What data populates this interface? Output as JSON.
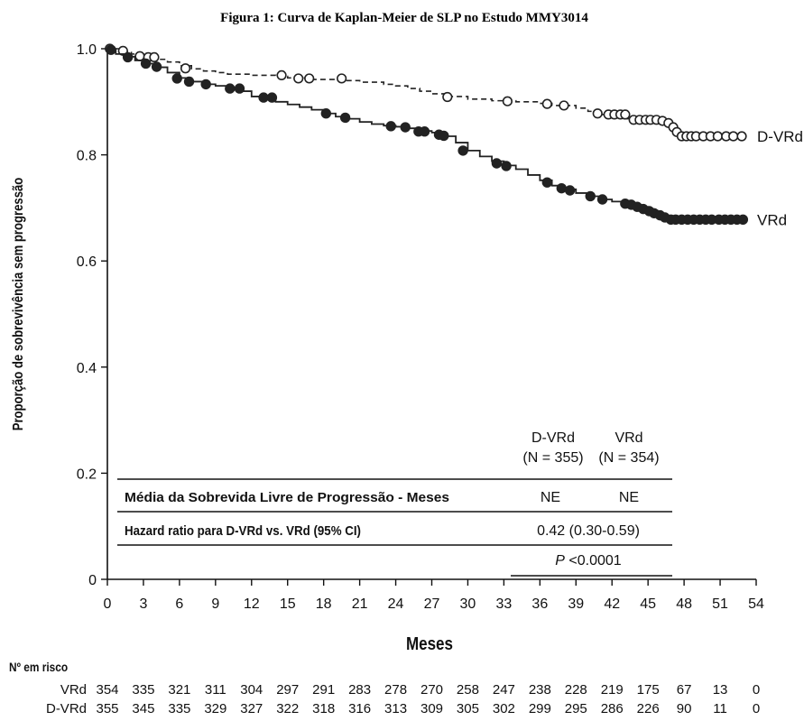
{
  "chart_data": {
    "type": "line",
    "title": "Figura 1: Curva de Kaplan-Meier de SLP no Estudo MMY3014",
    "xlabel": "Meses",
    "ylabel": "Proporção de sobrevivência sem progressão",
    "xlim": [
      0,
      54
    ],
    "ylim": [
      0,
      1.0
    ],
    "x_ticks": [
      "0",
      "3",
      "6",
      "9",
      "12",
      "15",
      "18",
      "21",
      "24",
      "27",
      "30",
      "33",
      "36",
      "39",
      "42",
      "45",
      "48",
      "51",
      "54"
    ],
    "y_ticks": [
      {
        "value": 0,
        "label": "0"
      },
      {
        "value": 0.2,
        "label": "0.2"
      },
      {
        "value": 0.4,
        "label": "0.4"
      },
      {
        "value": 0.6,
        "label": "0.6"
      },
      {
        "value": 0.8,
        "label": "0.8"
      },
      {
        "value": 1.0,
        "label": "1.0"
      }
    ],
    "grid": false,
    "series": [
      {
        "name": "D-VRd",
        "color": "#222222",
        "marker": "open-circle",
        "line": "dashed",
        "steps": [
          [
            0,
            1.0
          ],
          [
            1,
            0.995
          ],
          [
            2,
            0.99
          ],
          [
            3,
            0.985
          ],
          [
            4,
            0.98
          ],
          [
            5,
            0.975
          ],
          [
            6,
            0.968
          ],
          [
            7,
            0.962
          ],
          [
            8,
            0.958
          ],
          [
            9,
            0.955
          ],
          [
            10,
            0.952
          ],
          [
            12,
            0.95
          ],
          [
            14,
            0.948
          ],
          [
            15,
            0.945
          ],
          [
            17,
            0.942
          ],
          [
            19,
            0.94
          ],
          [
            21,
            0.937
          ],
          [
            23,
            0.933
          ],
          [
            24,
            0.93
          ],
          [
            25,
            0.925
          ],
          [
            26,
            0.92
          ],
          [
            27,
            0.915
          ],
          [
            28,
            0.91
          ],
          [
            30,
            0.905
          ],
          [
            32,
            0.902
          ],
          [
            34,
            0.9
          ],
          [
            36,
            0.897
          ],
          [
            37,
            0.893
          ],
          [
            39,
            0.888
          ],
          [
            40,
            0.882
          ],
          [
            41,
            0.876
          ],
          [
            42,
            0.872
          ],
          [
            43,
            0.868
          ],
          [
            44,
            0.866
          ],
          [
            45,
            0.864
          ],
          [
            46,
            0.86
          ],
          [
            46.5,
            0.855
          ],
          [
            47,
            0.848
          ],
          [
            47.5,
            0.84
          ],
          [
            48,
            0.835
          ],
          [
            53,
            0.835
          ]
        ],
        "censored": [
          [
            0.2,
            1.0
          ],
          [
            1.3,
            0.996
          ],
          [
            2.7,
            0.986
          ],
          [
            3.4,
            0.984
          ],
          [
            3.9,
            0.984
          ],
          [
            6.5,
            0.963
          ],
          [
            14.5,
            0.95
          ],
          [
            15.9,
            0.944
          ],
          [
            16.8,
            0.944
          ],
          [
            19.5,
            0.944
          ],
          [
            28.3,
            0.909
          ],
          [
            33.3,
            0.901
          ],
          [
            36.6,
            0.896
          ],
          [
            38,
            0.893
          ],
          [
            40.8,
            0.878
          ],
          [
            41.7,
            0.876
          ],
          [
            42.2,
            0.876
          ],
          [
            42.7,
            0.876
          ],
          [
            43.1,
            0.876
          ],
          [
            43.8,
            0.866
          ],
          [
            44.3,
            0.866
          ],
          [
            44.8,
            0.866
          ],
          [
            45.2,
            0.866
          ],
          [
            45.7,
            0.866
          ],
          [
            46.2,
            0.864
          ],
          [
            46.7,
            0.86
          ],
          [
            47.1,
            0.852
          ],
          [
            47.4,
            0.843
          ],
          [
            47.8,
            0.835
          ],
          [
            48.2,
            0.835
          ],
          [
            48.6,
            0.835
          ],
          [
            49,
            0.835
          ],
          [
            49.6,
            0.835
          ],
          [
            50.2,
            0.835
          ],
          [
            50.8,
            0.835
          ],
          [
            51.5,
            0.835
          ],
          [
            52.1,
            0.835
          ],
          [
            52.8,
            0.835
          ]
        ]
      },
      {
        "name": "VRd",
        "color": "#222222",
        "marker": "filled-circle",
        "line": "solid",
        "steps": [
          [
            0,
            1.0
          ],
          [
            0.7,
            0.99
          ],
          [
            1.5,
            0.985
          ],
          [
            2.3,
            0.978
          ],
          [
            3,
            0.972
          ],
          [
            4,
            0.965
          ],
          [
            5,
            0.955
          ],
          [
            6,
            0.945
          ],
          [
            7,
            0.938
          ],
          [
            8,
            0.933
          ],
          [
            9,
            0.93
          ],
          [
            10,
            0.925
          ],
          [
            11,
            0.92
          ],
          [
            12,
            0.91
          ],
          [
            13,
            0.905
          ],
          [
            14,
            0.9
          ],
          [
            15,
            0.895
          ],
          [
            16,
            0.89
          ],
          [
            17,
            0.885
          ],
          [
            18,
            0.878
          ],
          [
            19,
            0.872
          ],
          [
            20,
            0.868
          ],
          [
            21,
            0.862
          ],
          [
            22,
            0.858
          ],
          [
            23,
            0.855
          ],
          [
            24,
            0.853
          ],
          [
            25,
            0.85
          ],
          [
            26,
            0.845
          ],
          [
            27,
            0.842
          ],
          [
            28,
            0.835
          ],
          [
            29,
            0.823
          ],
          [
            30,
            0.808
          ],
          [
            31,
            0.797
          ],
          [
            32,
            0.788
          ],
          [
            33,
            0.78
          ],
          [
            34,
            0.773
          ],
          [
            35,
            0.762
          ],
          [
            36,
            0.752
          ],
          [
            37,
            0.742
          ],
          [
            38,
            0.735
          ],
          [
            39,
            0.728
          ],
          [
            40,
            0.722
          ],
          [
            41,
            0.716
          ],
          [
            42,
            0.712
          ],
          [
            43,
            0.708
          ],
          [
            44,
            0.702
          ],
          [
            45,
            0.695
          ],
          [
            45.8,
            0.688
          ],
          [
            46.5,
            0.682
          ],
          [
            47,
            0.678
          ],
          [
            53,
            0.678
          ]
        ],
        "censored": [
          [
            0.3,
            0.998
          ],
          [
            1.7,
            0.984
          ],
          [
            3.2,
            0.972
          ],
          [
            4.1,
            0.966
          ],
          [
            5.8,
            0.944
          ],
          [
            6.8,
            0.938
          ],
          [
            8.2,
            0.933
          ],
          [
            10.2,
            0.925
          ],
          [
            11,
            0.925
          ],
          [
            13,
            0.908
          ],
          [
            13.7,
            0.908
          ],
          [
            18.2,
            0.878
          ],
          [
            19.8,
            0.87
          ],
          [
            23.6,
            0.854
          ],
          [
            24.8,
            0.852
          ],
          [
            25.9,
            0.844
          ],
          [
            26.4,
            0.844
          ],
          [
            27.6,
            0.838
          ],
          [
            28,
            0.836
          ],
          [
            29.6,
            0.808
          ],
          [
            32.4,
            0.784
          ],
          [
            33.2,
            0.779
          ],
          [
            36.6,
            0.748
          ],
          [
            37.8,
            0.737
          ],
          [
            38.5,
            0.733
          ],
          [
            40.2,
            0.722
          ],
          [
            41.2,
            0.716
          ],
          [
            43.1,
            0.708
          ],
          [
            43.6,
            0.706
          ],
          [
            44.1,
            0.702
          ],
          [
            44.6,
            0.698
          ],
          [
            45.1,
            0.694
          ],
          [
            45.5,
            0.69
          ],
          [
            46,
            0.686
          ],
          [
            46.4,
            0.682
          ],
          [
            46.9,
            0.678
          ],
          [
            47.3,
            0.678
          ],
          [
            47.8,
            0.678
          ],
          [
            48.3,
            0.678
          ],
          [
            48.8,
            0.678
          ],
          [
            49.3,
            0.678
          ],
          [
            49.8,
            0.678
          ],
          [
            50.3,
            0.678
          ],
          [
            50.9,
            0.678
          ],
          [
            51.4,
            0.678
          ],
          [
            51.9,
            0.678
          ],
          [
            52.4,
            0.678
          ],
          [
            52.9,
            0.678
          ]
        ]
      }
    ],
    "series_labels": [
      {
        "text": "D-VRd",
        "value": 0.835
      },
      {
        "text": "VRd",
        "value": 0.678
      }
    ],
    "stats_table": {
      "col1_header": [
        "D-VRd",
        "(N = 355)"
      ],
      "col2_header": [
        "VRd",
        "(N = 354)"
      ],
      "row1_label": "Média da Sobrevida Livre de Progressão - Meses",
      "row1_col1": "NE",
      "row1_col2": "NE",
      "row2_label": "Hazard ratio para D-VRd vs. VRd (95% CI)",
      "row2_value": "0.42 (0.30-0.59)",
      "p_italic": "P",
      "p_rest": " <0.0001"
    },
    "risk_table": {
      "heading": "Nº em risco",
      "rows": [
        {
          "label": "VRd",
          "values": [
            "354",
            "335",
            "321",
            "311",
            "304",
            "297",
            "291",
            "283",
            "278",
            "270",
            "258",
            "247",
            "238",
            "228",
            "219",
            "175",
            "67",
            "13",
            "0"
          ]
        },
        {
          "label": "D-VRd",
          "values": [
            "355",
            "345",
            "335",
            "329",
            "327",
            "322",
            "318",
            "316",
            "313",
            "309",
            "305",
            "302",
            "299",
            "295",
            "286",
            "226",
            "90",
            "11",
            "0"
          ]
        }
      ]
    }
  }
}
